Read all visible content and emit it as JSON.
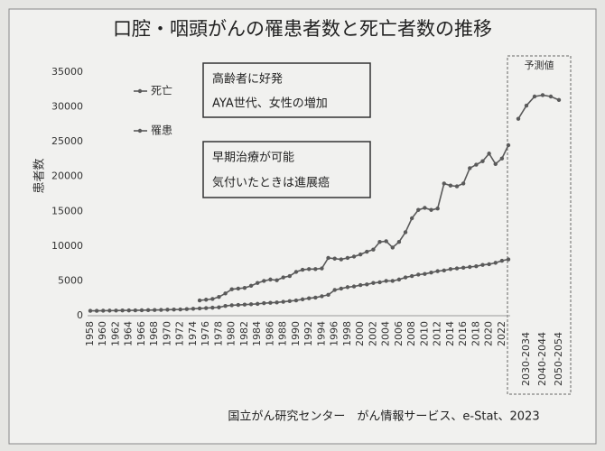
{
  "chart_data": {
    "type": "line",
    "title": "口腔・咽頭がんの罹患者数と死亡者数の推移",
    "y_label": "患者数",
    "source": "国立がん研究センター　がん情報サービス、e-Stat、2023",
    "projection_label": "予測値",
    "annotations": [
      [
        "高齢者に好発",
        "AYA世代、女性の増加"
      ],
      [
        "早期治療が可能",
        "気付いたときは進展癌"
      ]
    ],
    "categories": [
      "1958",
      null,
      "1960",
      null,
      "1962",
      null,
      "1964",
      null,
      "1966",
      null,
      "1968",
      null,
      "1970",
      null,
      "1972",
      null,
      "1974",
      null,
      "1976",
      null,
      "1978",
      null,
      "1980",
      null,
      "1982",
      null,
      "1984",
      null,
      "1986",
      null,
      "1988",
      null,
      "1990",
      null,
      "1992",
      null,
      "1994",
      null,
      "1996",
      null,
      "1998",
      null,
      "2000",
      null,
      "2002",
      null,
      "2004",
      null,
      "2006",
      null,
      "2008",
      null,
      "2010",
      null,
      "2012",
      null,
      "2014",
      null,
      "2016",
      null,
      "2018",
      null,
      "2020",
      null,
      "2022",
      null,
      null,
      "2030-2034",
      null,
      "2040-2044",
      null,
      "2050-2054"
    ],
    "series": [
      {
        "name": "死亡",
        "color": "#5a5a5a",
        "values": [
          700,
          700,
          720,
          730,
          740,
          750,
          760,
          770,
          780,
          800,
          820,
          840,
          860,
          880,
          900,
          950,
          1000,
          1050,
          1100,
          1150,
          1200,
          1400,
          1500,
          1550,
          1600,
          1650,
          1700,
          1800,
          1850,
          1900,
          2000,
          2100,
          2200,
          2350,
          2500,
          2600,
          2800,
          3000,
          3700,
          3900,
          4100,
          4200,
          4400,
          4500,
          4700,
          4800,
          5000,
          5000,
          5200,
          5500,
          5700,
          5900,
          6000,
          6200,
          6400,
          6500,
          6700,
          6800,
          6900,
          7000,
          7100,
          7300,
          7400,
          7600,
          7900,
          8100,
          null,
          null,
          null,
          null,
          null,
          null
        ]
      },
      {
        "name": "罹患",
        "color": "#5a5a5a",
        "values": [
          null,
          null,
          null,
          null,
          null,
          null,
          null,
          null,
          null,
          null,
          null,
          null,
          null,
          null,
          null,
          null,
          null,
          2200,
          2300,
          2400,
          2700,
          3200,
          3800,
          3900,
          4000,
          4300,
          4700,
          5000,
          5200,
          5100,
          5500,
          5700,
          6300,
          6600,
          6700,
          6700,
          6800,
          8300,
          8200,
          8100,
          8300,
          8500,
          8800,
          9200,
          9500,
          10600,
          10700,
          9800,
          10600,
          12000,
          14000,
          15200,
          15500,
          15200,
          15400,
          19000,
          18700,
          18600,
          19000,
          21200,
          21700,
          22200,
          23300,
          21800,
          22600,
          24500,
          null,
          null,
          null,
          null,
          null,
          null
        ]
      },
      {
        "name": "予測値",
        "color": "#5a5a5a",
        "values": [
          null,
          null,
          null,
          null,
          null,
          null,
          null,
          null,
          null,
          null,
          null,
          null,
          null,
          null,
          null,
          null,
          null,
          null,
          null,
          null,
          null,
          null,
          null,
          null,
          null,
          null,
          null,
          null,
          null,
          null,
          null,
          null,
          null,
          null,
          null,
          null,
          null,
          null,
          null,
          null,
          null,
          null,
          null,
          null,
          null,
          null,
          null,
          null,
          null,
          null,
          null,
          null,
          null,
          null,
          null,
          null,
          null,
          null,
          null,
          null,
          null,
          null,
          null,
          null,
          null,
          null,
          28300,
          30200,
          31500,
          31700,
          31500,
          31000
        ]
      }
    ],
    "ylim": [
      0,
      35000
    ],
    "yticks": [
      0,
      5000,
      10000,
      15000,
      20000,
      25000,
      30000,
      35000
    ],
    "grid": false
  }
}
